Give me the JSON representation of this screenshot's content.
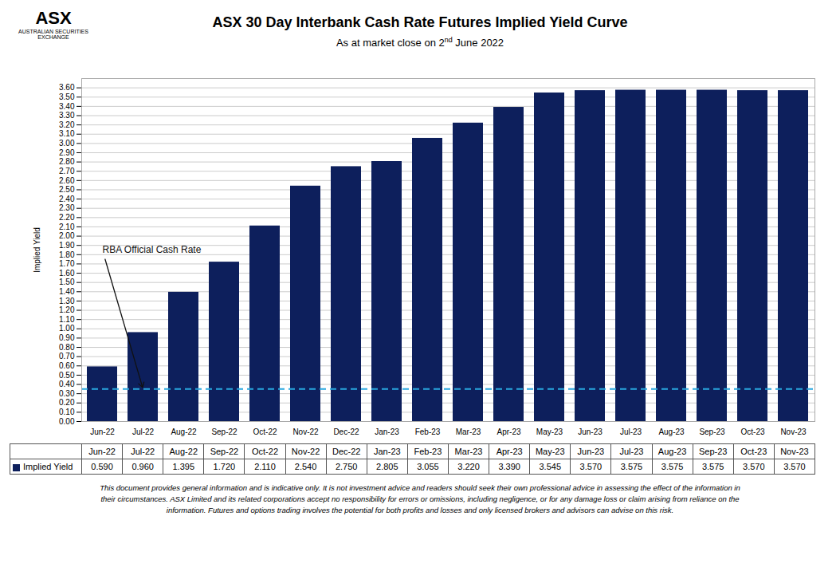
{
  "chart_data": {
    "type": "bar",
    "title": "ASX 30 Day Interbank Cash Rate Futures Implied Yield Curve",
    "subtitle_parts": [
      "As at market close on 2",
      "nd",
      " June 2022"
    ],
    "ylabel": "Implied Yield",
    "categories": [
      "Jun-22",
      "Jul-22",
      "Aug-22",
      "Sep-22",
      "Oct-22",
      "Nov-22",
      "Dec-22",
      "Jan-23",
      "Feb-23",
      "Mar-23",
      "Apr-23",
      "May-23",
      "Jun-23",
      "Jul-23",
      "Aug-23",
      "Sep-23",
      "Oct-23",
      "Nov-23"
    ],
    "values": [
      0.59,
      0.96,
      1.395,
      1.72,
      2.11,
      2.54,
      2.75,
      2.805,
      3.055,
      3.22,
      3.39,
      3.545,
      3.57,
      3.575,
      3.575,
      3.575,
      3.57,
      3.57
    ],
    "value_labels": [
      "0.590",
      "0.960",
      "1.395",
      "1.720",
      "2.110",
      "2.540",
      "2.750",
      "2.805",
      "3.055",
      "3.220",
      "3.390",
      "3.545",
      "3.570",
      "3.575",
      "3.575",
      "3.575",
      "3.570",
      "3.570"
    ],
    "color": "#0d1f5c",
    "ylim": [
      0,
      3.7
    ],
    "yticks": [
      {
        "value": 0,
        "label": "0.00"
      },
      {
        "value": 0.1,
        "label": "0.10"
      },
      {
        "value": 0.2,
        "label": "0.20"
      },
      {
        "value": 0.3,
        "label": "0.30"
      },
      {
        "value": 0.4,
        "label": "0.40"
      },
      {
        "value": 0.5,
        "label": "0.50"
      },
      {
        "value": 0.6,
        "label": "0.60"
      },
      {
        "value": 0.7,
        "label": "0.70"
      },
      {
        "value": 0.8,
        "label": "0.80"
      },
      {
        "value": 0.9,
        "label": "0.90"
      },
      {
        "value": 1.0,
        "label": "1.00"
      },
      {
        "value": 1.1,
        "label": "1.10"
      },
      {
        "value": 1.2,
        "label": "1.20"
      },
      {
        "value": 1.3,
        "label": "1.30"
      },
      {
        "value": 1.4,
        "label": "1.40"
      },
      {
        "value": 1.5,
        "label": "1.50"
      },
      {
        "value": 1.6,
        "label": "1.60"
      },
      {
        "value": 1.7,
        "label": "1.70"
      },
      {
        "value": 1.8,
        "label": "1.80"
      },
      {
        "value": 1.9,
        "label": "1.90"
      },
      {
        "value": 2.0,
        "label": "2.00"
      },
      {
        "value": 2.1,
        "label": "2.10"
      },
      {
        "value": 2.2,
        "label": "2.20"
      },
      {
        "value": 2.3,
        "label": "2.30"
      },
      {
        "value": 2.4,
        "label": "2.40"
      },
      {
        "value": 2.5,
        "label": "2.50"
      },
      {
        "value": 2.6,
        "label": "2.60"
      },
      {
        "value": 2.7,
        "label": "2.70"
      },
      {
        "value": 2.8,
        "label": "2.80"
      },
      {
        "value": 2.9,
        "label": "2.90"
      },
      {
        "value": 3.0,
        "label": "3.00"
      },
      {
        "value": 3.1,
        "label": "3.10"
      },
      {
        "value": 3.2,
        "label": "3.20"
      },
      {
        "value": 3.3,
        "label": "3.30"
      },
      {
        "value": 3.4,
        "label": "3.40"
      },
      {
        "value": 3.5,
        "label": "3.50"
      },
      {
        "value": 3.6,
        "label": "3.60"
      }
    ],
    "grid": true,
    "reference_line": {
      "value": 0.35,
      "color": "#29a8e0",
      "line_style": "dashed"
    },
    "annotation": "RBA Official Cash Rate",
    "table_row_label": "Implied Yield",
    "disclaimer": "This document provides general information and is indicative only. It is not investment advice and readers should seek their own professional advice in assessing the effect of the information in\ntheir circumstances. ASX Limited and its related corporations accept no responsibility for errors or omissions, including negligence, or for any damage loss or claim arising from reliance on the\ninformation. Futures and options trading involves the potential for both profits and losses and only licensed brokers and advisors can advise on this risk.",
    "logo_text": [
      "ASX",
      "AUSTRALIAN SECURITIES EXCHANGE"
    ]
  }
}
